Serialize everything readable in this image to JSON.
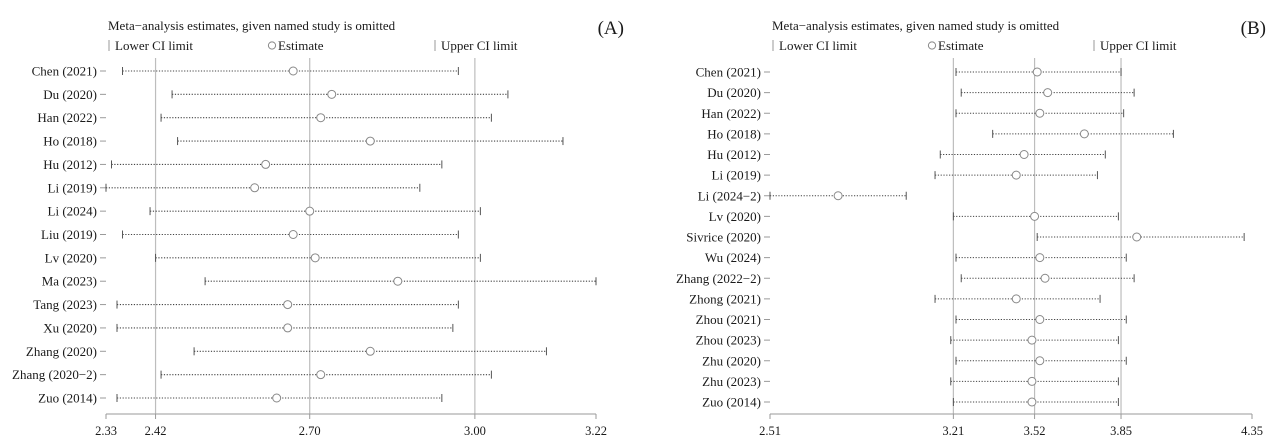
{
  "chart_data": [
    {
      "type": "forest",
      "panel_label": "(A)",
      "title": "Meta−analysis estimates, given named study is omitted",
      "legend": {
        "lower": "Lower CI limit",
        "estimate": "Estimate",
        "upper": "Upper CI limit"
      },
      "xlim": [
        2.33,
        3.22
      ],
      "xticks": [
        "2.33",
        "2.42",
        "2.70",
        "3.00",
        "3.22"
      ],
      "reference_lines": [
        2.42,
        2.7,
        3.0
      ],
      "studies": [
        {
          "name": "Chen (2021)",
          "lower": 2.36,
          "estimate": 2.67,
          "upper": 2.97
        },
        {
          "name": "Du (2020)",
          "lower": 2.45,
          "estimate": 2.74,
          "upper": 3.06
        },
        {
          "name": "Han (2022)",
          "lower": 2.43,
          "estimate": 2.72,
          "upper": 3.03
        },
        {
          "name": "Ho (2018)",
          "lower": 2.46,
          "estimate": 2.81,
          "upper": 3.16
        },
        {
          "name": "Hu (2012)",
          "lower": 2.34,
          "estimate": 2.62,
          "upper": 2.94
        },
        {
          "name": "Li (2019)",
          "lower": 2.33,
          "estimate": 2.6,
          "upper": 2.9
        },
        {
          "name": "Li (2024)",
          "lower": 2.41,
          "estimate": 2.7,
          "upper": 3.01
        },
        {
          "name": "Liu (2019)",
          "lower": 2.36,
          "estimate": 2.67,
          "upper": 2.97
        },
        {
          "name": "Lv (2020)",
          "lower": 2.42,
          "estimate": 2.71,
          "upper": 3.01
        },
        {
          "name": "Ma (2023)",
          "lower": 2.51,
          "estimate": 2.86,
          "upper": 3.22
        },
        {
          "name": "Tang (2023)",
          "lower": 2.35,
          "estimate": 2.66,
          "upper": 2.97
        },
        {
          "name": "Xu (2020)",
          "lower": 2.35,
          "estimate": 2.66,
          "upper": 2.96
        },
        {
          "name": "Zhang (2020)",
          "lower": 2.49,
          "estimate": 2.81,
          "upper": 3.13
        },
        {
          "name": "Zhang (2020−2)",
          "lower": 2.43,
          "estimate": 2.72,
          "upper": 3.03
        },
        {
          "name": "Zuo (2014)",
          "lower": 2.35,
          "estimate": 2.64,
          "upper": 2.94
        }
      ]
    },
    {
      "type": "forest",
      "panel_label": "(B)",
      "title": "Meta−analysis estimates, given named study is omitted",
      "legend": {
        "lower": "Lower CI limit",
        "estimate": "Estimate",
        "upper": "Upper CI limit"
      },
      "xlim": [
        2.51,
        4.35
      ],
      "xticks": [
        "2.51",
        "3.21",
        "3.52",
        "3.85",
        "4.35"
      ],
      "reference_lines": [
        3.21,
        3.52,
        3.85
      ],
      "studies": [
        {
          "name": "Chen (2021)",
          "lower": 3.22,
          "estimate": 3.53,
          "upper": 3.85
        },
        {
          "name": "Du (2020)",
          "lower": 3.24,
          "estimate": 3.57,
          "upper": 3.9
        },
        {
          "name": "Han (2022)",
          "lower": 3.22,
          "estimate": 3.54,
          "upper": 3.86
        },
        {
          "name": "Ho (2018)",
          "lower": 3.36,
          "estimate": 3.71,
          "upper": 4.05
        },
        {
          "name": "Hu (2012)",
          "lower": 3.16,
          "estimate": 3.48,
          "upper": 3.79
        },
        {
          "name": "Li (2019)",
          "lower": 3.14,
          "estimate": 3.45,
          "upper": 3.76
        },
        {
          "name": "Li (2024−2)",
          "lower": 2.51,
          "estimate": 2.77,
          "upper": 3.03
        },
        {
          "name": "Lv (2020)",
          "lower": 3.21,
          "estimate": 3.52,
          "upper": 3.84
        },
        {
          "name": "Sivrice (2020)",
          "lower": 3.53,
          "estimate": 3.91,
          "upper": 4.32
        },
        {
          "name": "Wu (2024)",
          "lower": 3.22,
          "estimate": 3.54,
          "upper": 3.87
        },
        {
          "name": "Zhang (2022−2)",
          "lower": 3.24,
          "estimate": 3.56,
          "upper": 3.9
        },
        {
          "name": "Zhong (2021)",
          "lower": 3.14,
          "estimate": 3.45,
          "upper": 3.77
        },
        {
          "name": "Zhou (2021)",
          "lower": 3.22,
          "estimate": 3.54,
          "upper": 3.87
        },
        {
          "name": "Zhou (2023)",
          "lower": 3.2,
          "estimate": 3.51,
          "upper": 3.84
        },
        {
          "name": "Zhu (2020)",
          "lower": 3.22,
          "estimate": 3.54,
          "upper": 3.87
        },
        {
          "name": "Zhu (2023)",
          "lower": 3.2,
          "estimate": 3.51,
          "upper": 3.84
        },
        {
          "name": "Zuo (2014)",
          "lower": 3.21,
          "estimate": 3.51,
          "upper": 3.84
        }
      ]
    }
  ]
}
